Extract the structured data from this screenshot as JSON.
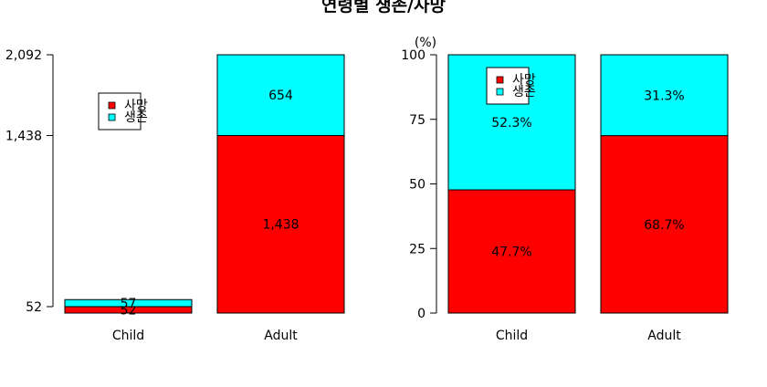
{
  "title": "연령별 생존/사망",
  "colors": {
    "death": "#ff0000",
    "survival": "#00ffff",
    "axis": "#000000"
  },
  "chart_data": [
    {
      "type": "bar",
      "stacked": true,
      "title": "",
      "xlabel": "",
      "ylabel": "",
      "categories": [
        "Child",
        "Adult"
      ],
      "series": [
        {
          "name": "사망",
          "values": [
            52,
            1438
          ],
          "labels": [
            "52",
            "1,438"
          ]
        },
        {
          "name": "생존",
          "values": [
            57,
            654
          ],
          "labels": [
            "57",
            "654"
          ]
        }
      ],
      "yticks": [
        52,
        1438,
        2092
      ],
      "ytick_labels": [
        "52",
        "1,438",
        "2,092"
      ],
      "ylim": [
        0,
        2092
      ],
      "legend": [
        "사망",
        "생존"
      ],
      "legend_position": "top-left",
      "grid": false
    },
    {
      "type": "bar",
      "stacked": true,
      "title": "",
      "xlabel": "",
      "ylabel": "(%)",
      "categories": [
        "Child",
        "Adult"
      ],
      "series": [
        {
          "name": "사망",
          "values": [
            47.7,
            68.7
          ],
          "labels": [
            "47.7%",
            "68.7%"
          ]
        },
        {
          "name": "생존",
          "values": [
            52.3,
            31.3
          ],
          "labels": [
            "52.3%",
            "31.3%"
          ]
        }
      ],
      "yticks": [
        0,
        25,
        50,
        75,
        100
      ],
      "ytick_labels": [
        "0",
        "25",
        "50",
        "75",
        "100"
      ],
      "ylim": [
        0,
        100
      ],
      "legend": [
        "사망",
        "생존"
      ],
      "legend_position": "top-left",
      "grid": false
    }
  ]
}
